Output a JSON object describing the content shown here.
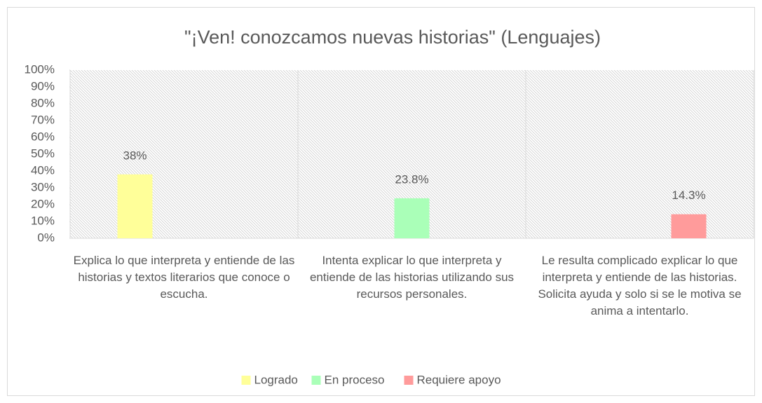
{
  "chart_data": {
    "type": "bar",
    "title": "\"¡Ven! conozcamos nuevas historias\" (Lenguajes)",
    "categories": [
      "Explica lo que interpreta y entiende de las historias y textos literarios que conoce o escucha.",
      "Intenta explicar lo que interpreta y entiende de las historias utilizando sus recursos personales.",
      "Le resulta complicado explicar lo que interpreta y entiende de las historias. Solicita ayuda y solo si se le motiva se anima a intentarlo."
    ],
    "series": [
      {
        "name": "Logrado",
        "color": "#ffff99",
        "values": [
          38,
          null,
          null
        ],
        "value_labels": [
          "38%",
          null,
          null
        ]
      },
      {
        "name": "En proceso",
        "color": "#aaffb8",
        "values": [
          null,
          23.8,
          null
        ],
        "value_labels": [
          null,
          "23.8%",
          null
        ]
      },
      {
        "name": "Requiere apoyo",
        "color": "#ff9b9b",
        "values": [
          null,
          null,
          14.3
        ],
        "value_labels": [
          null,
          null,
          "14.3%"
        ]
      }
    ],
    "ylim": [
      0,
      100
    ],
    "yticks": [
      {
        "value": 0,
        "label": "0%"
      },
      {
        "value": 10,
        "label": "10%"
      },
      {
        "value": 20,
        "label": "20%"
      },
      {
        "value": 30,
        "label": "30%"
      },
      {
        "value": 40,
        "label": "40%"
      },
      {
        "value": 50,
        "label": "50%"
      },
      {
        "value": 60,
        "label": "60%"
      },
      {
        "value": 70,
        "label": "70%"
      },
      {
        "value": 80,
        "label": "80%"
      },
      {
        "value": 90,
        "label": "90%"
      },
      {
        "value": 100,
        "label": "100%"
      }
    ],
    "legend": "bottom"
  }
}
